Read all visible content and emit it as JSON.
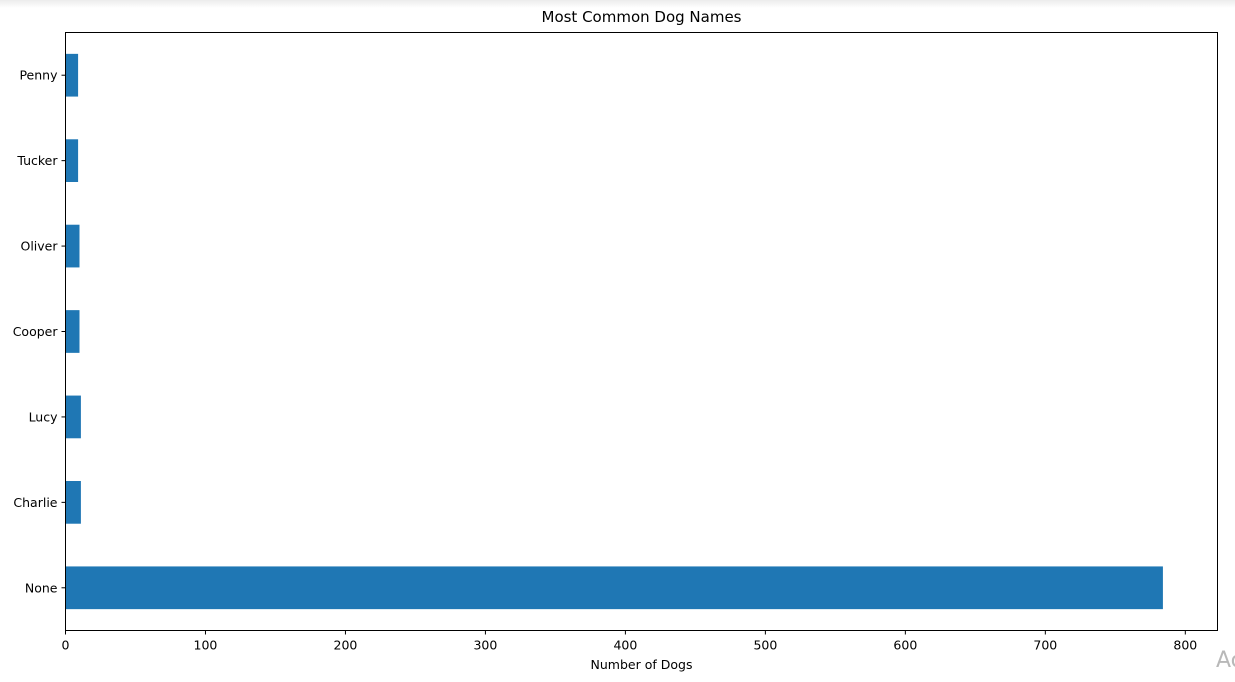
{
  "chart_data": {
    "type": "bar",
    "orientation": "horizontal",
    "title": "Most Common Dog Names",
    "xlabel": "Number of Dogs",
    "ylabel": "",
    "categories": [
      "None",
      "Charlie",
      "Lucy",
      "Cooper",
      "Oliver",
      "Tucker",
      "Penny"
    ],
    "values": [
      784,
      11,
      11,
      10,
      10,
      9,
      9
    ],
    "xlim": [
      0,
      823
    ],
    "xticks": [
      0,
      100,
      200,
      300,
      400,
      500,
      600,
      700,
      800
    ],
    "grid": false,
    "bar_color": "#1f77b4"
  },
  "watermark": {
    "text": "Ac"
  }
}
